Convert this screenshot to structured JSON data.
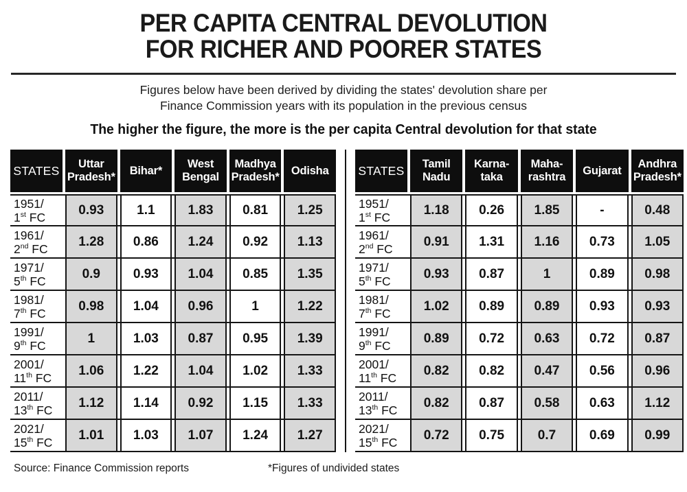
{
  "title": {
    "line1": "PER CAPITA CENTRAL DEVOLUTION",
    "line2": "FOR RICHER AND POORER STATES"
  },
  "subtitle": {
    "line1": "Figures below have been derived by dividing the states' devolution share per",
    "line2": "Finance Commission years with its population in the previous census"
  },
  "lead": "The higher the figure, the more is the per capita Central devolution for that state",
  "footer": {
    "source": "Source: Finance Commission reports",
    "note": "*Figures of undivided states"
  },
  "colors": {
    "header_bg": "#0e0e0e",
    "shaded_cell": "#d8d8d8",
    "line": "#141414"
  },
  "tables": [
    {
      "columns": [
        [
          "STATES"
        ],
        [
          "Uttar",
          "Pradesh*"
        ],
        [
          "Bihar*"
        ],
        [
          "West",
          "Bengal"
        ],
        [
          "Madhya",
          "Pradesh*"
        ],
        [
          "Odisha"
        ]
      ],
      "rows": [
        {
          "year": "1951",
          "fc_no": "1",
          "fc_ord": "st",
          "fc_text": "FC",
          "values": [
            "0.93",
            "1.1",
            "1.83",
            "0.81",
            "1.25"
          ]
        },
        {
          "year": "1961",
          "fc_no": "2",
          "fc_ord": "nd",
          "fc_text": "FC",
          "values": [
            "1.28",
            "0.86",
            "1.24",
            "0.92",
            "1.13"
          ]
        },
        {
          "year": "1971",
          "fc_no": "5",
          "fc_ord": "th",
          "fc_text": "FC",
          "values": [
            "0.9",
            "0.93",
            "1.04",
            "0.85",
            "1.35"
          ]
        },
        {
          "year": "1981",
          "fc_no": "7",
          "fc_ord": "th",
          "fc_text": "FC",
          "values": [
            "0.98",
            "1.04",
            "0.96",
            "1",
            "1.22"
          ]
        },
        {
          "year": "1991",
          "fc_no": "9",
          "fc_ord": "th",
          "fc_text": "FC",
          "values": [
            "1",
            "1.03",
            "0.87",
            "0.95",
            "1.39"
          ]
        },
        {
          "year": "2001",
          "fc_no": "11",
          "fc_ord": "th",
          "fc_text": "FC",
          "values": [
            "1.06",
            "1.22",
            "1.04",
            "1.02",
            "1.33"
          ]
        },
        {
          "year": "2011",
          "fc_no": "13",
          "fc_ord": "th",
          "fc_text": "FC",
          "values": [
            "1.12",
            "1.14",
            "0.92",
            "1.15",
            "1.33"
          ]
        },
        {
          "year": "2021",
          "fc_no": "15",
          "fc_ord": "th",
          "fc_text": "FC",
          "values": [
            "1.01",
            "1.03",
            "1.07",
            "1.24",
            "1.27"
          ]
        }
      ]
    },
    {
      "columns": [
        [
          "STATES"
        ],
        [
          "Tamil",
          "Nadu"
        ],
        [
          "Karna-",
          "taka"
        ],
        [
          "Maha-",
          "rashtra"
        ],
        [
          "Gujarat"
        ],
        [
          "Andhra",
          "Pradesh*"
        ]
      ],
      "rows": [
        {
          "year": "1951",
          "fc_no": "1",
          "fc_ord": "st",
          "fc_text": "FC",
          "values": [
            "1.18",
            "0.26",
            "1.85",
            "-",
            "0.48"
          ]
        },
        {
          "year": "1961",
          "fc_no": "2",
          "fc_ord": "nd",
          "fc_text": "FC",
          "values": [
            "0.91",
            "1.31",
            "1.16",
            "0.73",
            "1.05"
          ]
        },
        {
          "year": "1971",
          "fc_no": "5",
          "fc_ord": "th",
          "fc_text": "FC",
          "values": [
            "0.93",
            "0.87",
            "1",
            "0.89",
            "0.98"
          ]
        },
        {
          "year": "1981",
          "fc_no": "7",
          "fc_ord": "th",
          "fc_text": "FC",
          "values": [
            "1.02",
            "0.89",
            "0.89",
            "0.93",
            "0.93"
          ]
        },
        {
          "year": "1991",
          "fc_no": "9",
          "fc_ord": "th",
          "fc_text": "FC",
          "values": [
            "0.89",
            "0.72",
            "0.63",
            "0.72",
            "0.87"
          ]
        },
        {
          "year": "2001",
          "fc_no": "11",
          "fc_ord": "th",
          "fc_text": "FC",
          "values": [
            "0.82",
            "0.82",
            "0.47",
            "0.56",
            "0.96"
          ]
        },
        {
          "year": "2011",
          "fc_no": "13",
          "fc_ord": "th",
          "fc_text": "FC",
          "values": [
            "0.82",
            "0.87",
            "0.58",
            "0.63",
            "1.12"
          ]
        },
        {
          "year": "2021",
          "fc_no": "15",
          "fc_ord": "th",
          "fc_text": "FC",
          "values": [
            "0.72",
            "0.75",
            "0.7",
            "0.69",
            "0.99"
          ]
        }
      ]
    }
  ],
  "chart_data": [
    {
      "type": "table",
      "title": "PER CAPITA CENTRAL DEVOLUTION FOR RICHER AND POORER STATES",
      "columns": [
        "STATES",
        "Uttar Pradesh*",
        "Bihar*",
        "West Bengal",
        "Madhya Pradesh*",
        "Odisha"
      ],
      "rows": [
        [
          "1951/1st FC",
          0.93,
          1.1,
          1.83,
          0.81,
          1.25
        ],
        [
          "1961/2nd FC",
          1.28,
          0.86,
          1.24,
          0.92,
          1.13
        ],
        [
          "1971/5th FC",
          0.9,
          0.93,
          1.04,
          0.85,
          1.35
        ],
        [
          "1981/7th FC",
          0.98,
          1.04,
          0.96,
          1,
          1.22
        ],
        [
          "1991/9th FC",
          1,
          1.03,
          0.87,
          0.95,
          1.39
        ],
        [
          "2001/11th FC",
          1.06,
          1.22,
          1.04,
          1.02,
          1.33
        ],
        [
          "2011/13th FC",
          1.12,
          1.14,
          0.92,
          1.15,
          1.33
        ],
        [
          "2021/15th FC",
          1.01,
          1.03,
          1.07,
          1.24,
          1.27
        ]
      ]
    },
    {
      "type": "table",
      "title": "PER CAPITA CENTRAL DEVOLUTION FOR RICHER AND POORER STATES",
      "columns": [
        "STATES",
        "Tamil Nadu",
        "Karna-taka",
        "Maha-rashtra",
        "Gujarat",
        "Andhra Pradesh*"
      ],
      "rows": [
        [
          "1951/1st FC",
          1.18,
          0.26,
          1.85,
          "-",
          0.48
        ],
        [
          "1961/2nd FC",
          0.91,
          1.31,
          1.16,
          0.73,
          1.05
        ],
        [
          "1971/5th FC",
          0.93,
          0.87,
          1,
          0.89,
          0.98
        ],
        [
          "1981/7th FC",
          1.02,
          0.89,
          0.89,
          0.93,
          0.93
        ],
        [
          "1991/9th FC",
          0.89,
          0.72,
          0.63,
          0.72,
          0.87
        ],
        [
          "2001/11th FC",
          0.82,
          0.82,
          0.47,
          0.56,
          0.96
        ],
        [
          "2011/13th FC",
          0.82,
          0.87,
          0.58,
          0.63,
          1.12
        ],
        [
          "2021/15th FC",
          0.72,
          0.75,
          0.7,
          0.69,
          0.99
        ]
      ]
    }
  ]
}
